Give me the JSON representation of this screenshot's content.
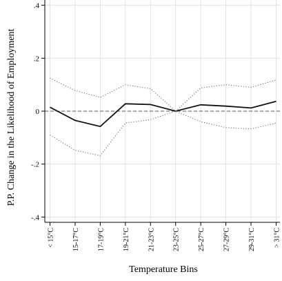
{
  "chart_data": {
    "type": "line",
    "title": "",
    "xlabel": "Temperature Bins",
    "ylabel": "P.P. Change in the Likelihood of Employment",
    "categories": [
      "< 15°C",
      "15-17°C",
      "17-19°C",
      "19-21°C",
      "21-23°C",
      "23-25°C",
      "25-27°C",
      "27-29°C",
      "29-31°C",
      "> 31°C"
    ],
    "ylim": [
      -0.42,
      0.42
    ],
    "yticks": [
      -0.4,
      -0.2,
      0,
      0.2,
      0.4
    ],
    "ytick_labels": [
      "-.4",
      "-.2",
      "0",
      ".2",
      ".4"
    ],
    "grid": true,
    "zero_line": "dashed",
    "series": [
      {
        "style": "solid",
        "values": [
          0.015,
          -0.035,
          -0.058,
          0.028,
          0.025,
          0.0,
          0.024,
          0.019,
          0.012,
          0.037
        ]
      },
      {
        "style": "dotted",
        "values": [
          0.125,
          0.078,
          0.052,
          0.1,
          0.085,
          0.0,
          0.088,
          0.1,
          0.09,
          0.118
        ]
      },
      {
        "style": "dotted",
        "values": [
          -0.09,
          -0.148,
          -0.168,
          -0.045,
          -0.032,
          0.0,
          -0.04,
          -0.062,
          -0.067,
          -0.045
        ]
      }
    ]
  }
}
